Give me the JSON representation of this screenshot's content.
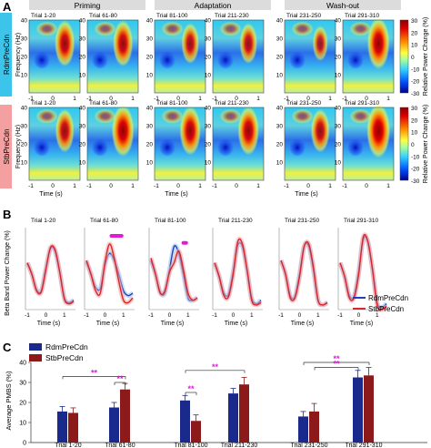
{
  "panel_labels": [
    "A",
    "B",
    "C"
  ],
  "phases": [
    "Priming",
    "Adaptation",
    "Wash-out"
  ],
  "groups": [
    "RdmPreCdn",
    "StbPreCdn"
  ],
  "trials": [
    "Trial 1-20",
    "Trial 61-80",
    "Trial 81-100",
    "Trial 211-230",
    "Trial 231-250",
    "Trial 291-310"
  ],
  "colors": {
    "phase_bar": "#dcdcdc",
    "group_rdm_tab": "#3cc4ea",
    "group_stb_tab": "#f4a0a0",
    "rdm_line": "#1f3fbf",
    "stb_line": "#d8262c",
    "rdm_bar": "#1a2a8c",
    "stb_bar": "#8c1a1a",
    "sig_marker": "#e21ad6"
  },
  "chart_data": [
    {
      "type": "heatmap",
      "panel": "A",
      "rows": [
        "RdmPreCdn",
        "StbPreCdn"
      ],
      "columns": [
        "Trial 1-20",
        "Trial 61-80",
        "Trial 81-100",
        "Trial 211-230",
        "Trial 231-250",
        "Trial 291-310"
      ],
      "ylabel": "Frequency (Hz)",
      "xlabel": "Time (s)",
      "y_ticks": [
        "10",
        "20",
        "30",
        "40"
      ],
      "x_ticks": [
        "-1",
        "0",
        "1"
      ],
      "colorbar": {
        "label": "Relative Power Change (%)",
        "ticks": [
          "30",
          "20",
          "10",
          "0",
          "-10",
          "-20",
          "-30"
        ],
        "range": [
          -30,
          30
        ]
      },
      "beta_activation": {
        "RdmPreCdn": [
          0.85,
          0.85,
          0.75,
          0.75,
          0.65,
          0.95
        ],
        "StbPreCdn": [
          0.8,
          0.95,
          0.9,
          0.9,
          0.8,
          1.0
        ]
      }
    },
    {
      "type": "line",
      "panel": "B",
      "ylabel": "Beta Band Power Change (%)",
      "xlabel": "Time (s)",
      "x_ticks": [
        "-1",
        "0",
        "1"
      ],
      "xlim": [
        -1.1,
        1.6
      ],
      "ylim": [
        -30,
        40
      ],
      "legend": [
        "RdmPreCdn",
        "StbPreCdn"
      ],
      "legend_position": "bottom-right",
      "panels": [
        "Trial 1-20",
        "Trial 61-80",
        "Trial 81-100",
        "Trial 211-230",
        "Trial 231-250",
        "Trial 291-310"
      ],
      "x": [
        -1.0,
        -0.75,
        -0.5,
        -0.25,
        0.0,
        0.25,
        0.5,
        0.75,
        1.0,
        1.25,
        1.5
      ],
      "series": [
        {
          "name": "RdmPreCdn",
          "values": [
            [
              10,
              0,
              -13,
              -14,
              5,
              22,
              20,
              2,
              -20,
              -24,
              -22
            ],
            [
              11,
              0,
              -11,
              -12,
              8,
              18,
              12,
              0,
              -14,
              -18,
              -16
            ],
            [
              12,
              0,
              -15,
              -16,
              4,
              24,
              18,
              0,
              -20,
              -22,
              -20
            ],
            [
              10,
              -2,
              -16,
              -17,
              2,
              25,
              24,
              4,
              -20,
              -25,
              -22
            ],
            [
              12,
              0,
              -18,
              -19,
              0,
              24,
              24,
              4,
              -22,
              -26,
              -24
            ],
            [
              10,
              -2,
              -18,
              -19,
              2,
              30,
              28,
              4,
              -24,
              -28,
              -25
            ]
          ]
        },
        {
          "name": "StbPreCdn",
          "values": [
            [
              10,
              0,
              -14,
              -15,
              4,
              23,
              21,
              2,
              -21,
              -25,
              -23
            ],
            [
              12,
              0,
              -14,
              -16,
              10,
              26,
              14,
              -6,
              -22,
              -24,
              -20
            ],
            [
              14,
              0,
              -16,
              -14,
              2,
              10,
              20,
              4,
              -16,
              -22,
              -20
            ],
            [
              10,
              -2,
              -18,
              -19,
              0,
              28,
              26,
              4,
              -22,
              -26,
              -24
            ],
            [
              12,
              0,
              -20,
              -20,
              -2,
              24,
              26,
              6,
              -22,
              -26,
              -24
            ],
            [
              10,
              -2,
              -20,
              -20,
              0,
              32,
              28,
              4,
              -26,
              -30,
              -27
            ]
          ]
        }
      ],
      "sig_markers": [
        {
          "panel": "Trial 61-80",
          "from": 0.35,
          "to": 0.9
        },
        {
          "panel": "Trial 81-100",
          "from": 0.75,
          "to": 0.9
        }
      ]
    },
    {
      "type": "bar",
      "panel": "C",
      "ylabel": "Average PMBS (%)",
      "categories": [
        "Trial 1-20",
        "Trial 61-80",
        "Trial 81-100",
        "Trial 211-230",
        "Trial 231-250",
        "Trial 291-310"
      ],
      "ylim": [
        0,
        40
      ],
      "y_ticks": [
        "0",
        "10",
        "20",
        "30",
        "40"
      ],
      "legend": [
        "RdmPreCdn",
        "StbPreCdn"
      ],
      "legend_position": "top-left",
      "series": [
        {
          "name": "RdmPreCdn",
          "values": [
            15.5,
            17.5,
            21,
            24.5,
            13,
            32.5
          ],
          "errors": [
            2.5,
            2.5,
            2.5,
            2.5,
            2.5,
            3.5
          ]
        },
        {
          "name": "StbPreCdn",
          "values": [
            14.8,
            26.5,
            10.8,
            29,
            15.5,
            33.5
          ],
          "errors": [
            2.5,
            3,
            3,
            3.5,
            4,
            4
          ]
        }
      ],
      "significance": [
        "**",
        "**",
        "**",
        "**",
        "**",
        "**"
      ]
    }
  ]
}
